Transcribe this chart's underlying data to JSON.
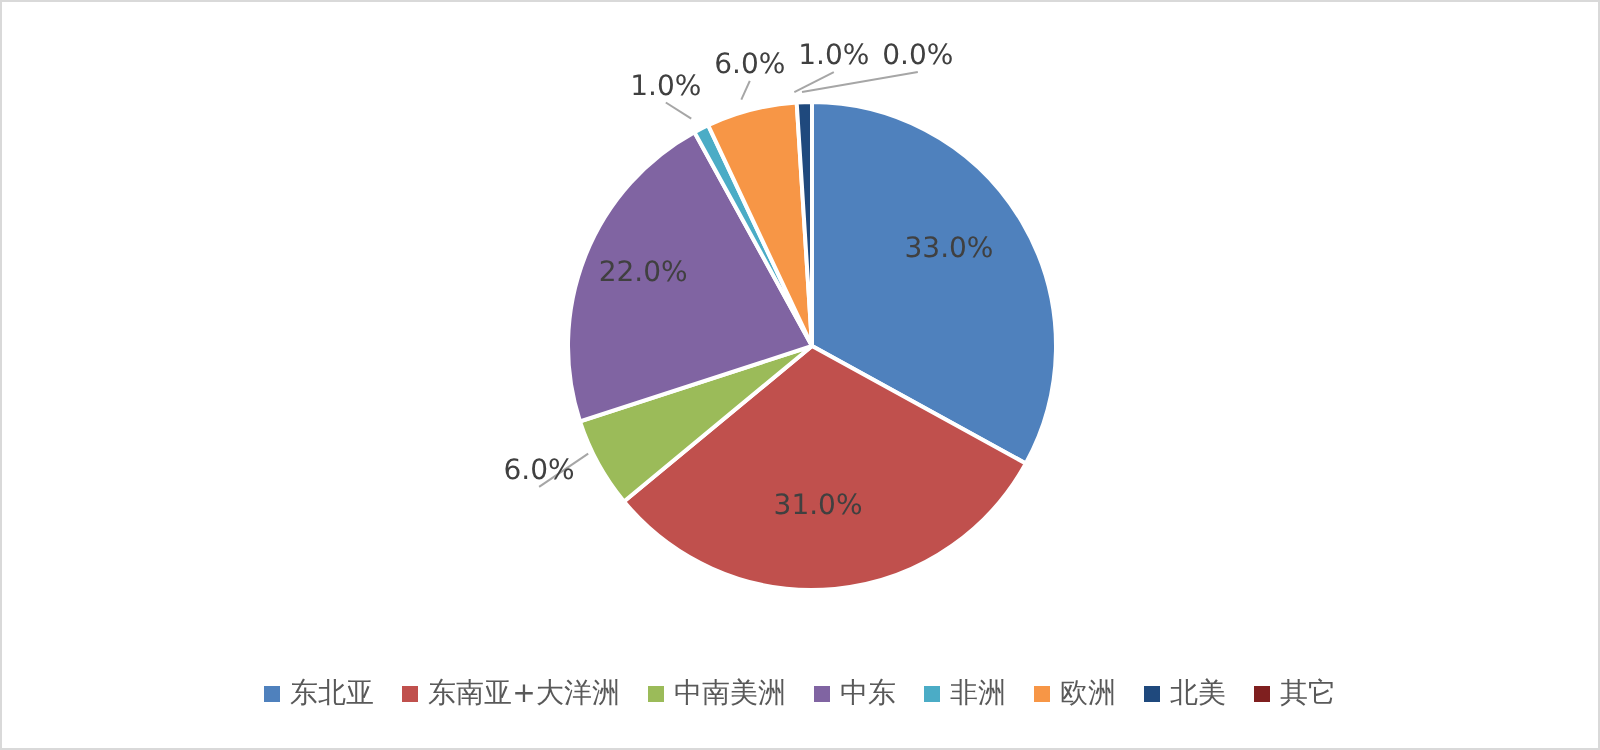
{
  "chart_data": {
    "type": "pie",
    "categories": [
      "东北亚",
      "东南亚+大洋洲",
      "中南美洲",
      "中东",
      "非洲",
      "欧洲",
      "北美",
      "其它"
    ],
    "values": [
      33,
      31,
      6,
      22,
      1,
      6,
      1,
      0
    ],
    "value_labels": [
      "33.0%",
      "31.0%",
      "6.0%",
      "22.0%",
      "1.0%",
      "6.0%",
      "1.0%",
      "0.0%"
    ],
    "colors": [
      "#4f81bd",
      "#c0504d",
      "#9bbb59",
      "#8064a2",
      "#4bacc6",
      "#f79646",
      "#1f497d",
      "#7f1f1f"
    ],
    "legend": "bottom"
  }
}
